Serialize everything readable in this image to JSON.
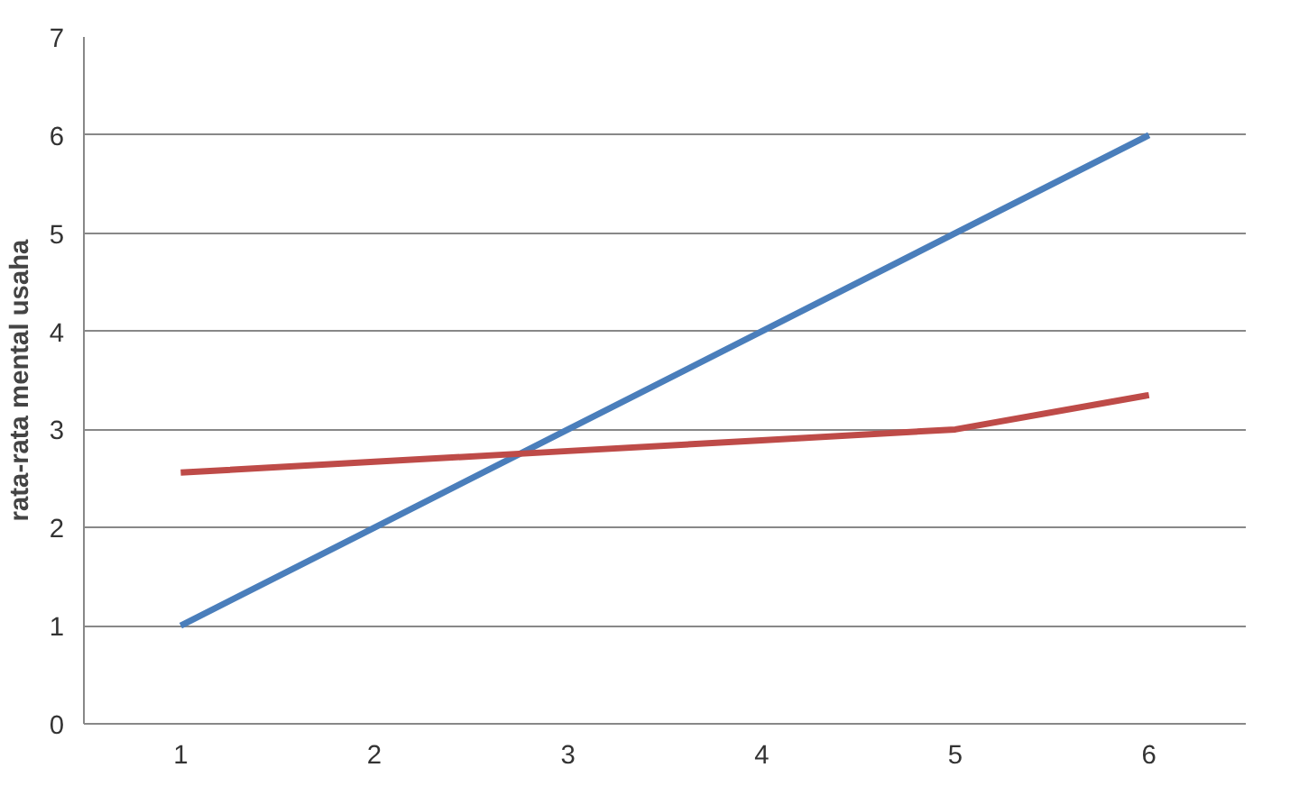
{
  "chart_data": {
    "type": "line",
    "ylabel": "rata-rata mental usaha",
    "categories": [
      "1",
      "2",
      "3",
      "4",
      "5",
      "6"
    ],
    "series": [
      {
        "color": "#4a7ebb",
        "values": [
          1,
          2,
          3,
          4,
          5,
          6
        ]
      },
      {
        "color": "#be4b48",
        "values": [
          2.56,
          2.67,
          2.78,
          2.89,
          3.0,
          3.35
        ]
      }
    ],
    "ylim": [
      0,
      7
    ],
    "yticks": [
      0,
      1,
      2,
      3,
      4,
      5,
      6,
      7
    ],
    "grid": "y",
    "marker": "none",
    "line_style": "solid"
  }
}
